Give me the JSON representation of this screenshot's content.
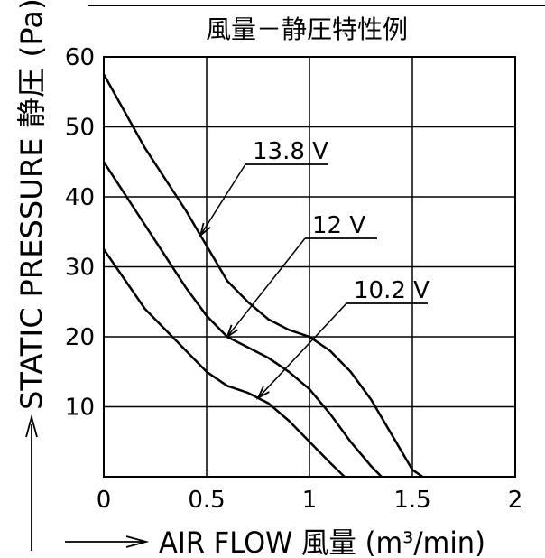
{
  "chart_data": {
    "type": "line",
    "title": "風量－静圧特性例",
    "xlabel": "AIR FLOW 風量 (m³/min)",
    "ylabel": "STATIC PRESSURE 静圧 (Pa)",
    "xlim": [
      0,
      2
    ],
    "ylim": [
      0,
      60
    ],
    "x_ticks": [
      "0",
      "0.5",
      "1",
      "1.5",
      "2"
    ],
    "y_ticks": [
      "10",
      "20",
      "30",
      "40",
      "50",
      "60"
    ],
    "grid": true,
    "series": [
      {
        "name": "13.8 V",
        "points": [
          [
            0,
            57.5
          ],
          [
            0.2,
            47
          ],
          [
            0.4,
            38
          ],
          [
            0.5,
            33
          ],
          [
            0.6,
            28
          ],
          [
            0.7,
            25
          ],
          [
            0.8,
            22.5
          ],
          [
            0.9,
            21
          ],
          [
            1.0,
            20
          ],
          [
            1.1,
            18
          ],
          [
            1.2,
            15
          ],
          [
            1.3,
            11
          ],
          [
            1.4,
            6
          ],
          [
            1.5,
            1
          ],
          [
            1.55,
            0
          ]
        ]
      },
      {
        "name": "12 V",
        "points": [
          [
            0,
            45
          ],
          [
            0.2,
            36
          ],
          [
            0.4,
            27
          ],
          [
            0.5,
            23
          ],
          [
            0.6,
            20
          ],
          [
            0.7,
            18.5
          ],
          [
            0.8,
            17
          ],
          [
            0.9,
            15
          ],
          [
            1.0,
            12.5
          ],
          [
            1.1,
            9
          ],
          [
            1.2,
            5
          ],
          [
            1.3,
            1.5
          ],
          [
            1.35,
            0
          ]
        ]
      },
      {
        "name": "10.2 V",
        "points": [
          [
            0,
            32.5
          ],
          [
            0.2,
            24
          ],
          [
            0.4,
            18
          ],
          [
            0.5,
            15
          ],
          [
            0.6,
            13
          ],
          [
            0.7,
            12
          ],
          [
            0.8,
            10.5
          ],
          [
            0.9,
            8
          ],
          [
            1.0,
            5
          ],
          [
            1.1,
            2
          ],
          [
            1.17,
            0
          ]
        ]
      }
    ],
    "annotations": [
      {
        "text": "13.8 V",
        "series": 0,
        "point_x": 0.47
      },
      {
        "text": "12 V",
        "series": 1,
        "point_x": 0.6
      },
      {
        "text": "10.2 V",
        "series": 2,
        "point_x": 0.75
      }
    ]
  }
}
